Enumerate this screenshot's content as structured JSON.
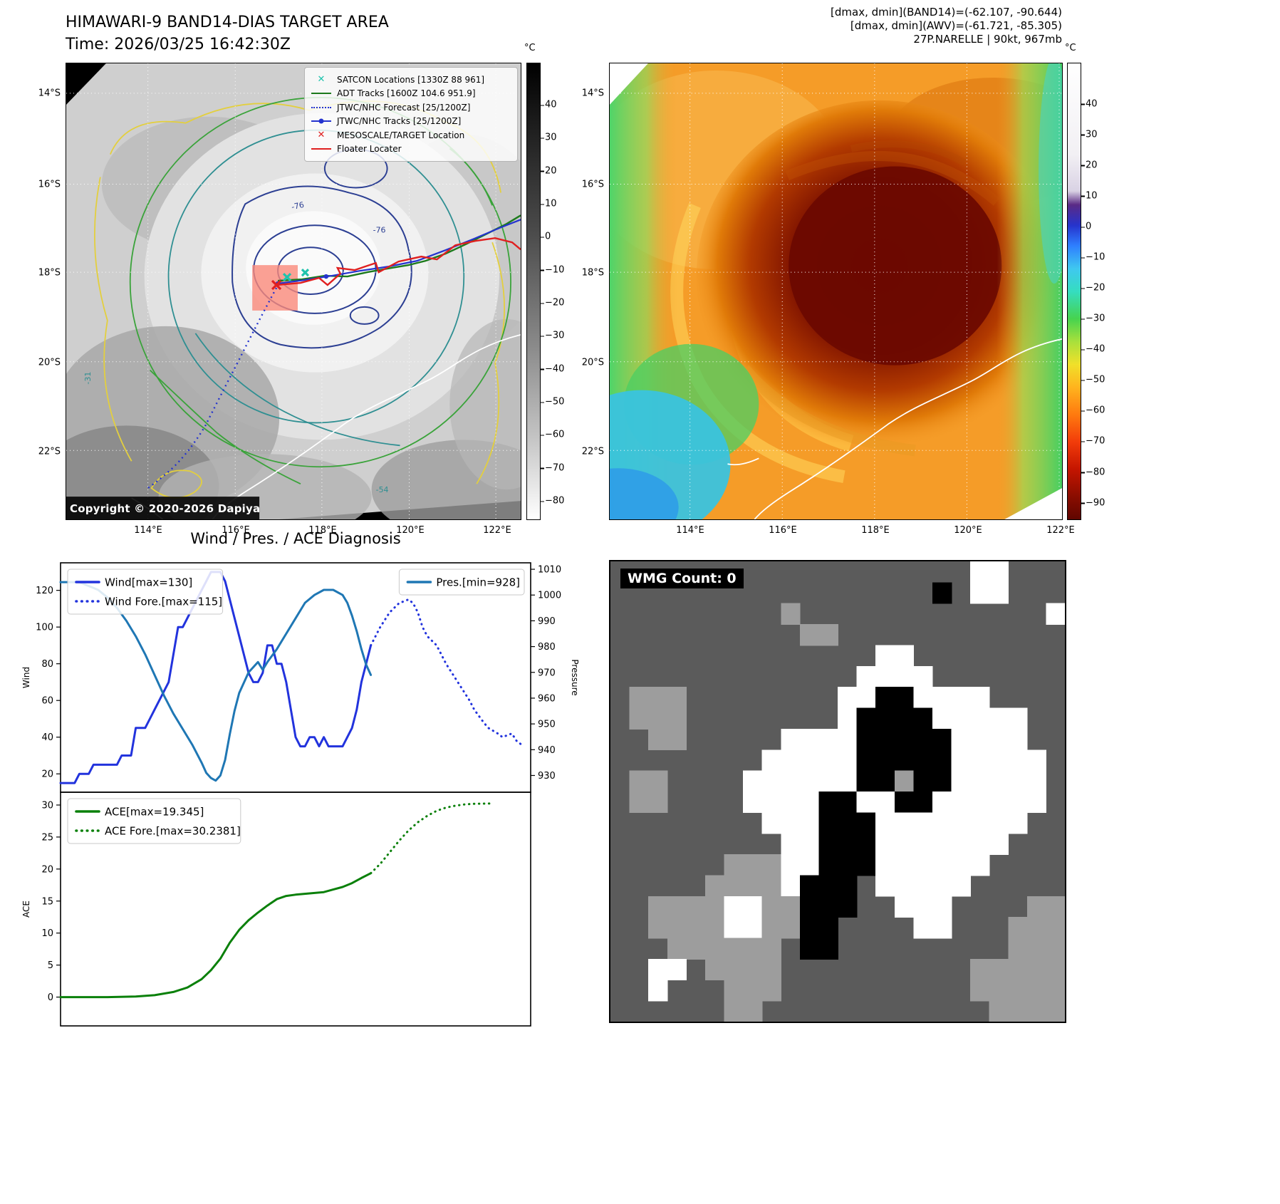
{
  "panel1": {
    "title_line1": "HIMAWARI-9 BAND14-DIAS TARGET AREA",
    "title_line2": "Time: 2026/03/25 16:42:30Z",
    "copyright": "Copyright © 2020-2026 Dapiya",
    "lat_ticks": [
      "14°S",
      "16°S",
      "18°S",
      "20°S",
      "22°S"
    ],
    "lon_ticks": [
      "114°E",
      "116°E",
      "118°E",
      "120°E",
      "122°E"
    ],
    "contour_labels": [
      "-76",
      "-76",
      "-54",
      "-31"
    ],
    "colorbar": {
      "unit": "°C",
      "ticks": [
        "40",
        "30",
        "20",
        "10",
        "0",
        "−10",
        "−20",
        "−30",
        "−40",
        "−50",
        "−60",
        "−70",
        "−80"
      ]
    },
    "legend": [
      {
        "label": "SATCON Locations [1330Z 88 961]",
        "marker": "x",
        "color": "#1fc3ad"
      },
      {
        "label": "ADT Tracks [1600Z 104.6 951.9]",
        "marker": "line",
        "color": "#1c7a1c"
      },
      {
        "label": "JTWC/NHC Forecast [25/1200Z]",
        "marker": "dotted",
        "color": "#2433cf"
      },
      {
        "label": "JTWC/NHC Tracks [25/1200Z]",
        "marker": "line-dot",
        "color": "#2433cf"
      },
      {
        "label": "MESOSCALE/TARGET Location",
        "marker": "x",
        "color": "#e02020"
      },
      {
        "label": "Floater Locater",
        "marker": "line",
        "color": "#e02020"
      }
    ]
  },
  "panel2": {
    "header_line1": "[dmax, dmin](BAND14)=(-62.107, -90.644)",
    "header_line2": "[dmax, dmin](AWV)=(-61.721, -85.305)",
    "header_line3": "27P.NARELLE | 90kt, 967mb",
    "lat_ticks": [
      "14°S",
      "16°S",
      "18°S",
      "20°S",
      "22°S"
    ],
    "lon_ticks": [
      "114°E",
      "116°E",
      "118°E",
      "120°E",
      "122°E"
    ],
    "colorbar": {
      "unit": "°C",
      "ticks": [
        "40",
        "30",
        "20",
        "10",
        "0",
        "−10",
        "−20",
        "−30",
        "−40",
        "−50",
        "−60",
        "−70",
        "−80",
        "−90"
      ]
    }
  },
  "panel3": {
    "title": "Wind / Pres. / ACE Diagnosis"
  },
  "wmg": {
    "label": "WMG Count: 0",
    "palette": {
      "d": "#5b5b5b",
      "g": "#9d9d9d",
      "w": "#ffffff",
      "b": "#000000"
    },
    "rows": [
      "dddddddddddddddddddwwddd",
      "dddddddddddddddddbdwwddd",
      "dddddddddgdddddddddddddw",
      "ddddddddddggdddddddddddd",
      "ddddddddddddddwwdddddddd",
      "dddddddddddddwwwwddddddd",
      "dgggddddddddwwbbwwwwdddd",
      "dgggddddddddwbbbbwwwwwdd",
      "ddggdddddwwwwbbbbbwwwwdd",
      "ddddddddwwwwwbbbbbwwwwwd",
      "dggddddwwwwwwbbgbbwwwwwd",
      "dggddddwwwwbbwwbbwwwwwwd",
      "ddddddddwwwbbbwwwwwwwwdd",
      "dddddddddwwbbbwwwwwwwddd",
      "ddddddgggwwbbbwwwwwwdddd",
      "dddddggggwbbbdwwwwwddddd",
      "ddggggwwggbbbddwwwddddgg",
      "ddggggwwggbbddddwwdddggg",
      "dddggggggdbbdddddddddggg",
      "ddwwdggggddddddddddggggg",
      "ddwdddgggddddddddddggggg",
      "ddddddggddddddddddddgggg"
    ]
  },
  "chart_data": [
    {
      "type": "line",
      "xlim": [
        0,
        100
      ],
      "left_axis": {
        "label": "Wind",
        "ylim": [
          10,
          135
        ],
        "ticks": [
          20,
          40,
          60,
          80,
          100,
          120
        ]
      },
      "right_axis": {
        "label": "Pressure",
        "ylim": [
          923.5,
          1012.5
        ],
        "ticks": [
          930,
          940,
          950,
          960,
          970,
          980,
          990,
          1000,
          1010
        ]
      },
      "series": [
        {
          "name": "Wind[max=130]",
          "axis": "left",
          "color": "#2233dd",
          "width": 3,
          "style": "solid",
          "x": [
            0,
            3,
            4,
            6,
            7,
            9,
            10,
            12,
            13,
            15,
            16,
            18,
            19,
            20,
            21,
            22,
            23,
            24,
            25,
            26,
            27,
            28,
            29,
            30,
            31,
            32,
            33,
            34,
            35,
            36,
            37,
            38,
            39,
            40,
            41,
            42,
            43,
            44,
            45,
            46,
            47,
            48,
            49,
            50,
            51,
            52,
            53,
            54,
            55,
            56,
            57,
            58,
            60,
            61,
            62,
            63,
            64,
            65,
            66
          ],
          "y": [
            15,
            15,
            20,
            20,
            25,
            25,
            25,
            25,
            30,
            30,
            45,
            45,
            50,
            55,
            60,
            65,
            70,
            85,
            100,
            100,
            105,
            110,
            115,
            120,
            125,
            130,
            130,
            130,
            125,
            115,
            105,
            95,
            85,
            75,
            70,
            70,
            75,
            90,
            90,
            80,
            80,
            70,
            55,
            40,
            35,
            35,
            40,
            40,
            35,
            40,
            35,
            35,
            35,
            40,
            45,
            55,
            70,
            80,
            90
          ]
        },
        {
          "name": "Wind Fore.[max=115]",
          "axis": "left",
          "color": "#2233dd",
          "width": 3,
          "style": "dotted",
          "x": [
            66,
            68,
            70,
            72,
            74,
            75,
            76,
            77,
            78,
            80,
            81,
            82,
            84,
            85,
            87,
            88,
            90,
            91,
            93,
            94,
            96,
            97,
            98
          ],
          "y": [
            90,
            100,
            108,
            113,
            115,
            113,
            108,
            100,
            95,
            90,
            85,
            80,
            72,
            68,
            60,
            55,
            48,
            45,
            42,
            40,
            42,
            38,
            36
          ]
        },
        {
          "name": "Pres.[min=928]",
          "axis": "right",
          "color": "#1f77b4",
          "width": 3,
          "style": "solid",
          "x": [
            0,
            4,
            8,
            10,
            12,
            14,
            16,
            18,
            20,
            22,
            24,
            26,
            28,
            30,
            31,
            32,
            33,
            34,
            35,
            36,
            37,
            38,
            40,
            42,
            43,
            44,
            46,
            48,
            50,
            52,
            54,
            56,
            58,
            60,
            61,
            62,
            63,
            64,
            65,
            66
          ],
          "y": [
            1005,
            1005,
            1002,
            999,
            995,
            990,
            984,
            977,
            969,
            961,
            954,
            948,
            942,
            935,
            931,
            929,
            928,
            930,
            936,
            946,
            955,
            962,
            970,
            974,
            971,
            974,
            979,
            985,
            991,
            997,
            1000,
            1002,
            1002,
            1000,
            997,
            992,
            986,
            979,
            973,
            969
          ]
        }
      ],
      "legends": [
        {
          "position": "top-left",
          "series": [
            0,
            1
          ]
        },
        {
          "position": "top-right",
          "series": [
            2
          ]
        }
      ]
    },
    {
      "type": "line",
      "xlim": [
        0,
        100
      ],
      "left_axis": {
        "label": "ACE",
        "ylim": [
          -4.5,
          32
        ],
        "ticks": [
          0,
          5,
          10,
          15,
          20,
          25,
          30
        ]
      },
      "series": [
        {
          "name": "ACE[max=19.345]",
          "axis": "left",
          "color": "#0a800a",
          "width": 3,
          "style": "solid",
          "x": [
            0,
            10,
            16,
            20,
            24,
            27,
            30,
            32,
            34,
            36,
            38,
            40,
            42,
            44,
            46,
            48,
            50,
            53,
            56,
            58,
            60,
            62,
            64,
            66
          ],
          "y": [
            0,
            0,
            0.1,
            0.3,
            0.8,
            1.5,
            2.8,
            4.2,
            6,
            8.5,
            10.5,
            12,
            13.2,
            14.3,
            15.3,
            15.8,
            16,
            16.2,
            16.4,
            16.8,
            17.2,
            17.8,
            18.6,
            19.345
          ]
        },
        {
          "name": "ACE Fore.[max=30.2381]",
          "axis": "left",
          "color": "#0a800a",
          "width": 3,
          "style": "dotted",
          "x": [
            66,
            68,
            70,
            72,
            74,
            76,
            78,
            80,
            82,
            84,
            86,
            88,
            90,
            92
          ],
          "y": [
            19.345,
            20.8,
            22.6,
            24.4,
            26,
            27.3,
            28.3,
            29.1,
            29.6,
            29.9,
            30.1,
            30.2,
            30.22,
            30.24
          ]
        }
      ],
      "legends": [
        {
          "position": "top-left",
          "series": [
            0,
            1
          ]
        }
      ]
    }
  ]
}
